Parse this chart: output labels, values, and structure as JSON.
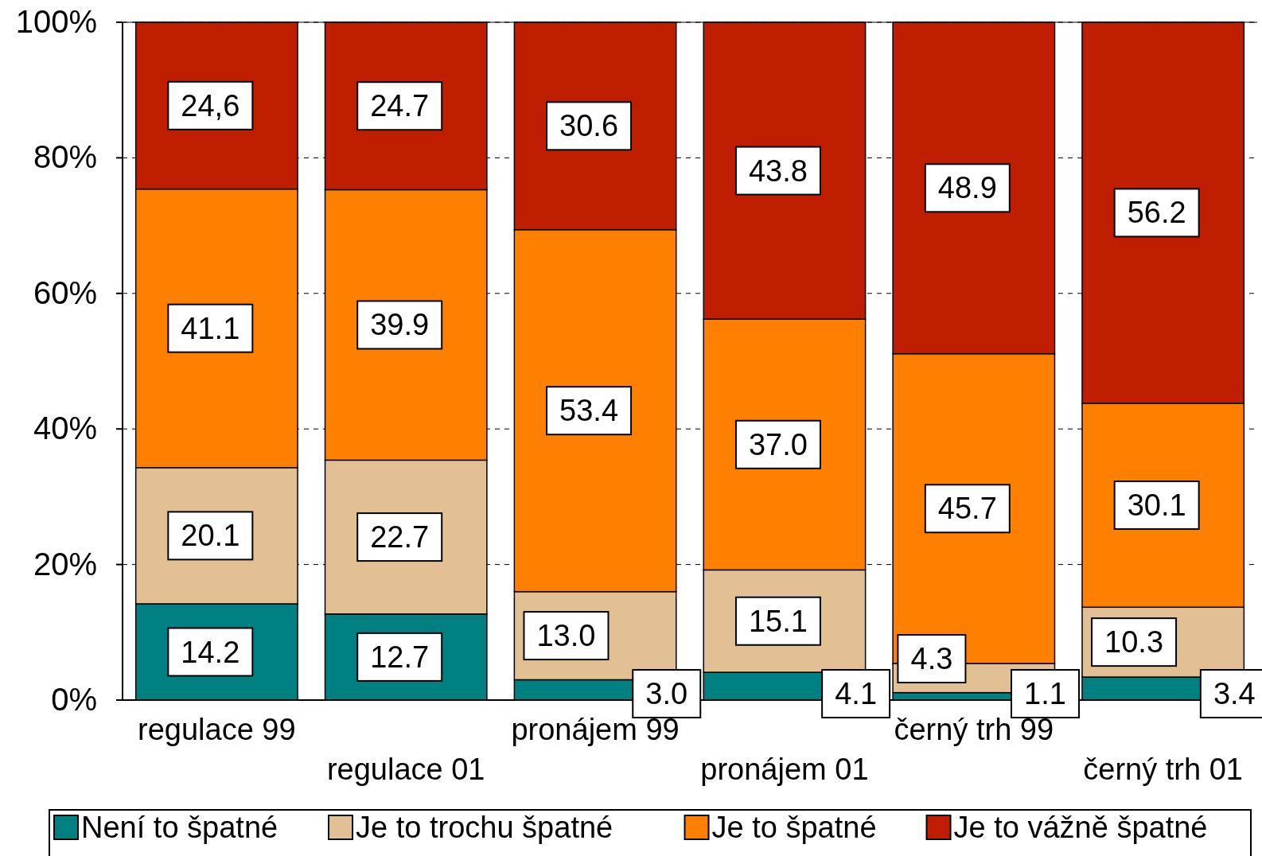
{
  "chart_data": {
    "type": "bar",
    "stacked": true,
    "categories": [
      "regulace 99",
      "regulace 01",
      "pronájem 99",
      "pronájem 01",
      "černý trh 99",
      "černý trh 01"
    ],
    "series": [
      {
        "name": "Není to špatné",
        "color": "#008080",
        "values": [
          14.2,
          12.7,
          3.0,
          4.1,
          1.1,
          3.4
        ],
        "value_labels": [
          "14.2",
          "12.7",
          "3.0",
          "4.1",
          "1.1",
          "3.4"
        ]
      },
      {
        "name": "Je to trochu špatné",
        "color": "#e3c094",
        "values": [
          20.1,
          22.7,
          13.0,
          15.1,
          4.3,
          10.3
        ],
        "value_labels": [
          "20.1",
          "22.7",
          "13.0",
          "15.1",
          "4.3",
          "10.3"
        ]
      },
      {
        "name": "Je to špatné",
        "color": "#ff8000",
        "values": [
          41.1,
          39.9,
          53.4,
          37.0,
          45.7,
          30.1
        ],
        "value_labels": [
          "41.1",
          "39.9",
          "53.4",
          "37.0",
          "45.7",
          "30.1"
        ]
      },
      {
        "name": "Je to vážně špatné",
        "color": "#bf1f00",
        "values": [
          24.6,
          24.7,
          30.6,
          43.8,
          48.9,
          56.2
        ],
        "value_labels": [
          "24,6",
          "24.7",
          "30.6",
          "43.8",
          "48.9",
          "56.2"
        ]
      }
    ],
    "ylim": [
      0,
      100
    ],
    "yticks": [
      {
        "value": 0,
        "label": "0%"
      },
      {
        "value": 20,
        "label": "20%"
      },
      {
        "value": 40,
        "label": "40%"
      },
      {
        "value": 60,
        "label": "60%"
      },
      {
        "value": 80,
        "label": "80%"
      },
      {
        "value": 100,
        "label": "100%"
      }
    ],
    "grid": "y",
    "legend": "bottom"
  }
}
